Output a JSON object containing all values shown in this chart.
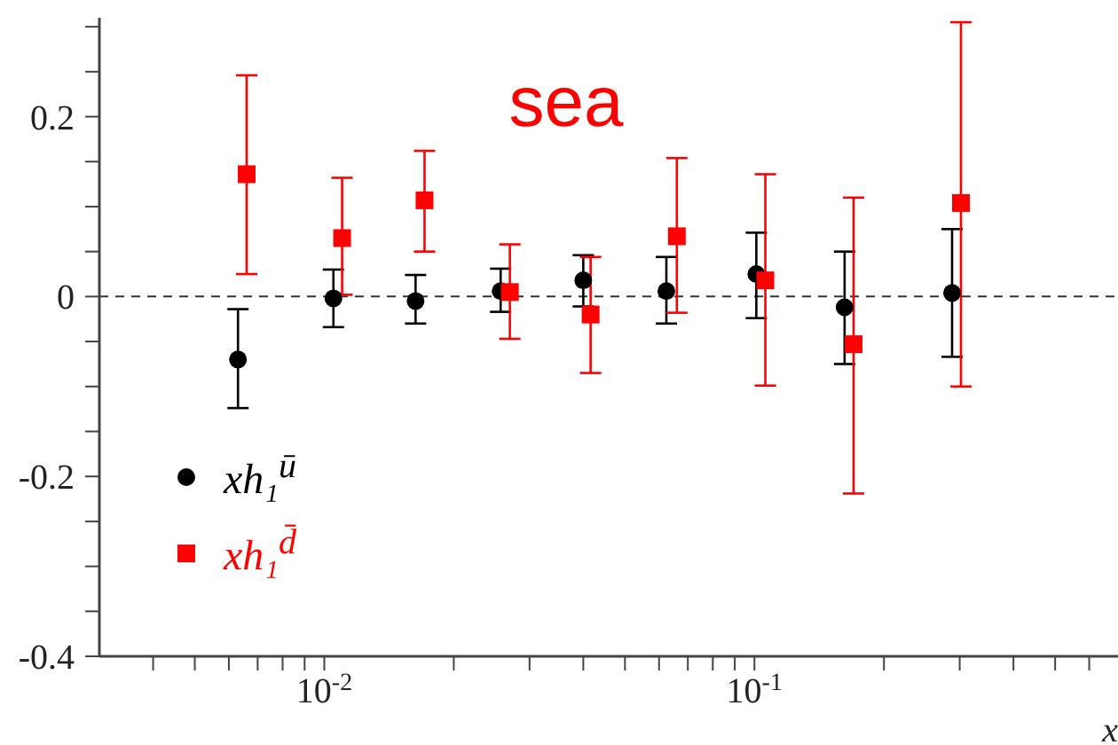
{
  "chart_data": {
    "type": "scatter",
    "title": "sea",
    "xlabel": "x",
    "log": "x",
    "xlim": [
      0.003,
      0.7
    ],
    "xticks": [
      {
        "value": 0.004,
        "label": null
      },
      {
        "value": 0.005,
        "label": null
      },
      {
        "value": 0.006,
        "label": null
      },
      {
        "value": 0.007,
        "label": null
      },
      {
        "value": 0.008,
        "label": null
      },
      {
        "value": 0.009,
        "label": null
      },
      {
        "value": 0.01,
        "label": "10$^{-2}$"
      },
      {
        "value": 0.02,
        "label": null
      },
      {
        "value": 0.03,
        "label": null
      },
      {
        "value": 0.04,
        "label": null
      },
      {
        "value": 0.05,
        "label": null
      },
      {
        "value": 0.06,
        "label": null
      },
      {
        "value": 0.07,
        "label": null
      },
      {
        "value": 0.08,
        "label": null
      },
      {
        "value": 0.09,
        "label": null
      },
      {
        "value": 0.1,
        "label": "10$^{-1}$"
      },
      {
        "value": 0.2,
        "label": null
      },
      {
        "value": 0.3,
        "label": null
      },
      {
        "value": 0.4,
        "label": null
      },
      {
        "value": 0.5,
        "label": null
      },
      {
        "value": 0.6,
        "label": null
      }
    ],
    "ylim": [
      -0.4,
      0.31
    ],
    "yticks": [
      {
        "value": -0.4,
        "label": "-0.4"
      },
      {
        "value": -0.35,
        "label": null
      },
      {
        "value": -0.3,
        "label": null
      },
      {
        "value": -0.25,
        "label": null
      },
      {
        "value": -0.2,
        "label": "-0.2"
      },
      {
        "value": -0.15,
        "label": null
      },
      {
        "value": -0.1,
        "label": null
      },
      {
        "value": -0.05,
        "label": null
      },
      {
        "value": 0,
        "label": "0"
      },
      {
        "value": 0.05,
        "label": null
      },
      {
        "value": 0.1,
        "label": null
      },
      {
        "value": 0.15,
        "label": null
      },
      {
        "value": 0.2,
        "label": "0.2"
      },
      {
        "value": 0.25,
        "label": null
      },
      {
        "value": 0.3,
        "label": null
      }
    ],
    "legend": "bottom left",
    "ref_lines": [
      {
        "axis": "y",
        "value": 0,
        "color": "#333333",
        "line_style": "dashed"
      }
    ],
    "series": [
      {
        "name": "xh₁$^{ū}$",
        "color": "#000000",
        "marker": "circle",
        "x": [
          0.0063,
          0.0105,
          0.0163,
          0.0257,
          0.04,
          0.0624,
          0.101,
          0.162,
          0.288
        ],
        "values": [
          -0.07,
          -0.002,
          -0.005,
          0.006,
          0.018,
          0.006,
          0.025,
          -0.012,
          0.004
        ],
        "errors": [
          [
            -0.124,
            -0.014
          ],
          [
            -0.034,
            0.03
          ],
          [
            -0.03,
            0.024
          ],
          [
            -0.017,
            0.031
          ],
          [
            -0.011,
            0.046
          ],
          [
            -0.03,
            0.044
          ],
          [
            -0.024,
            0.071
          ],
          [
            -0.075,
            0.05
          ],
          [
            -0.067,
            0.075
          ]
        ]
      },
      {
        "name": "xh₁$^{d̄}$",
        "color": "#ff0000",
        "marker": "square",
        "x": [
          0.0066,
          0.011,
          0.0171,
          0.027,
          0.0416,
          0.066,
          0.106,
          0.17,
          0.302
        ],
        "values": [
          0.136,
          0.065,
          0.107,
          0.005,
          -0.02,
          0.067,
          0.018,
          -0.053,
          0.104
        ],
        "errors": [
          [
            0.025,
            0.246
          ],
          [
            0.002,
            0.132
          ],
          [
            0.05,
            0.162
          ],
          [
            -0.047,
            0.058
          ],
          [
            -0.085,
            0.044
          ],
          [
            -0.018,
            0.154
          ],
          [
            -0.099,
            0.136
          ],
          [
            -0.219,
            0.11
          ],
          [
            -0.1,
            0.305
          ]
        ]
      }
    ]
  }
}
